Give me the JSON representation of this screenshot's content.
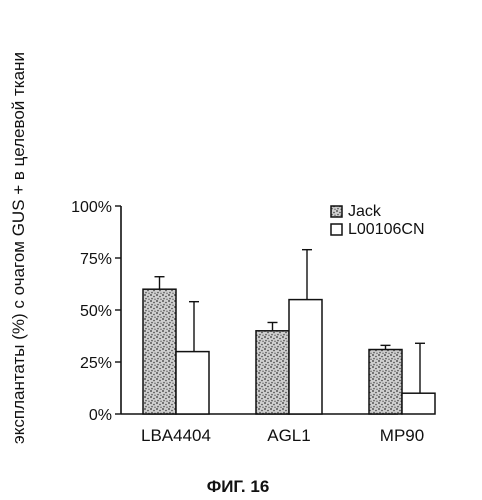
{
  "chart_data": {
    "type": "bar",
    "title": "ФИГ. 16",
    "ylabel": "эксплантаты (%) с очагом GUS + в целевой ткани",
    "xlabel": "",
    "categories": [
      "LBA4404",
      "AGL1",
      "MP90"
    ],
    "ylim": [
      0,
      100
    ],
    "yticks": [
      0,
      25,
      50,
      75,
      100
    ],
    "ytick_labels": [
      "0%",
      "25%",
      "50%",
      "75%",
      "100%"
    ],
    "series": [
      {
        "name": "Jack",
        "fill": "stippled",
        "values": [
          60,
          40,
          31
        ],
        "errors": [
          6,
          4,
          2
        ]
      },
      {
        "name": "L00106CN",
        "fill": "open",
        "values": [
          30,
          55,
          10
        ],
        "errors": [
          24,
          24,
          24
        ]
      }
    ],
    "legend_position": "top-right",
    "grid": false
  }
}
